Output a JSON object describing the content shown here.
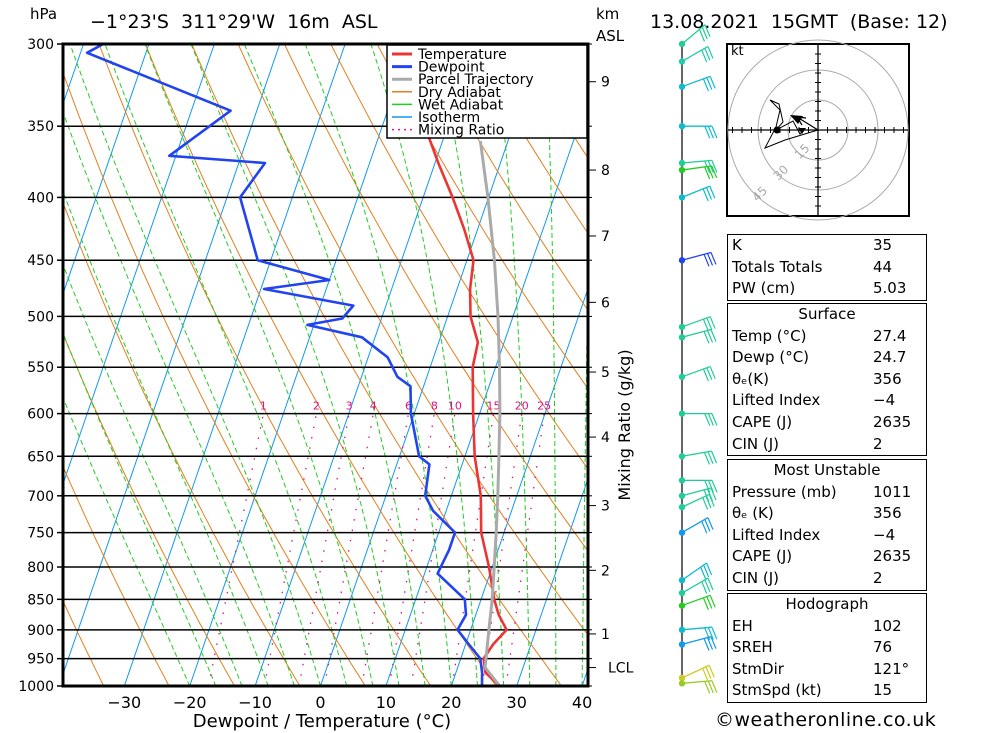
{
  "header": {
    "location": "−1°23'S  311°29'W  16m  ASL",
    "datetime": "13.08.2021  15GMT  (Base: 12)",
    "left_unit": "hPa",
    "right_unit_line1": "km",
    "right_unit_line2": "ASL"
  },
  "chart_data": {
    "type": "line",
    "title": "Skew-T log-P diagram",
    "xlabel": "Dewpoint / Temperature (°C)",
    "ylabel": "hPa",
    "y2label": "Mixing Ratio (g/kg)",
    "xlim": [
      -40,
      40
    ],
    "ylim": [
      1000,
      300
    ],
    "x_ticks": [
      -30,
      -20,
      -10,
      0,
      10,
      20,
      30,
      40
    ],
    "x_tick_labels": [
      "−30",
      "−20",
      "−10",
      "0",
      "10",
      "20",
      "30",
      "40"
    ],
    "pressure_levels": [
      300,
      350,
      400,
      450,
      500,
      550,
      600,
      650,
      700,
      750,
      800,
      850,
      900,
      950,
      1000
    ],
    "height_km_ticks": [
      {
        "label": "9",
        "p": 322
      },
      {
        "label": "8",
        "p": 380
      },
      {
        "label": "7",
        "p": 430
      },
      {
        "label": "6",
        "p": 487
      },
      {
        "label": "5",
        "p": 555
      },
      {
        "label": "4",
        "p": 627
      },
      {
        "label": "3",
        "p": 713
      },
      {
        "label": "2",
        "p": 805
      },
      {
        "label": "1",
        "p": 907
      },
      {
        "label": "LCL",
        "p": 966
      }
    ],
    "mixing_ratio_labels": [
      "1",
      "2",
      "3",
      "4",
      "6",
      "8",
      "10",
      "15",
      "20",
      "25"
    ],
    "mixing_ratio_values": [
      1,
      2,
      3,
      4,
      6,
      8,
      10,
      15,
      20,
      25
    ],
    "legend": {
      "placement": "top-center",
      "entries": [
        {
          "label": "Temperature",
          "color": "#ee3333",
          "style": "solid"
        },
        {
          "label": "Dewpoint",
          "color": "#2244ee",
          "style": "solid"
        },
        {
          "label": "Parcel Trajectory",
          "color": "#aaaaaa",
          "style": "solid"
        },
        {
          "label": "Dry Adiabat",
          "color": "#e08020",
          "style": "solid"
        },
        {
          "label": "Wet Adiabat",
          "color": "#22cc22",
          "style": "solid"
        },
        {
          "label": "Isotherm",
          "color": "#1199ee",
          "style": "solid"
        },
        {
          "label": "Mixing Ratio",
          "color": "#dd1188",
          "style": "dotted"
        }
      ]
    },
    "series": [
      {
        "name": "Temperature",
        "color": "#ee3333",
        "points": [
          [
            1000,
            27.4
          ],
          [
            975,
            24.5
          ],
          [
            950,
            23.5
          ],
          [
            925,
            24.2
          ],
          [
            900,
            25.5
          ],
          [
            875,
            23.5
          ],
          [
            850,
            22.0
          ],
          [
            800,
            19.5
          ],
          [
            750,
            16.5
          ],
          [
            700,
            14.5
          ],
          [
            650,
            11.5
          ],
          [
            600,
            9.0
          ],
          [
            550,
            6.5
          ],
          [
            525,
            6.0
          ],
          [
            500,
            3.5
          ],
          [
            475,
            2.0
          ],
          [
            450,
            1.0
          ],
          [
            425,
            -2.0
          ],
          [
            400,
            -5.5
          ],
          [
            375,
            -9.5
          ],
          [
            350,
            -13.5
          ],
          [
            340,
            -14.5
          ],
          [
            325,
            -16.5
          ],
          [
            300,
            -20.0
          ]
        ]
      },
      {
        "name": "Dewpoint",
        "color": "#2244ee",
        "points": [
          [
            1000,
            24.7
          ],
          [
            975,
            24.0
          ],
          [
            950,
            23.0
          ],
          [
            925,
            20.5
          ],
          [
            900,
            18.0
          ],
          [
            875,
            18.5
          ],
          [
            850,
            17.5
          ],
          [
            810,
            12.0
          ],
          [
            775,
            12.5
          ],
          [
            750,
            12.5
          ],
          [
            720,
            8.0
          ],
          [
            700,
            6.0
          ],
          [
            660,
            5.0
          ],
          [
            650,
            3.0
          ],
          [
            600,
            -0.5
          ],
          [
            570,
            -2.0
          ],
          [
            560,
            -4.5
          ],
          [
            540,
            -7.0
          ],
          [
            520,
            -12.0
          ],
          [
            508,
            -21.0
          ],
          [
            502,
            -16.0
          ],
          [
            490,
            -15.0
          ],
          [
            475,
            -29.5
          ],
          [
            467,
            -20.0
          ],
          [
            450,
            -32.0
          ],
          [
            400,
            -38.0
          ],
          [
            375,
            -36.0
          ],
          [
            370,
            -51.0
          ],
          [
            340,
            -44.0
          ],
          [
            305,
            -69.0
          ],
          [
            300,
            -67.0
          ]
        ]
      },
      {
        "name": "Parcel Trajectory",
        "color": "#aaaaaa",
        "points": [
          [
            1000,
            27.4
          ],
          [
            966,
            24.2
          ],
          [
            900,
            22.8
          ],
          [
            850,
            21.7
          ],
          [
            800,
            20.3
          ],
          [
            750,
            18.8
          ],
          [
            700,
            17.1
          ],
          [
            650,
            15.2
          ],
          [
            600,
            13.1
          ],
          [
            550,
            10.6
          ],
          [
            500,
            7.7
          ],
          [
            450,
            4.2
          ],
          [
            400,
            -0.1
          ],
          [
            360,
            -4.2
          ]
        ]
      }
    ]
  },
  "wind_barbs_label": "Wind profile",
  "hodograph": {
    "unit_label": "kt",
    "ring_labels": [
      "15",
      "30",
      "45"
    ]
  },
  "indices": {
    "top": [
      {
        "label": "K",
        "value": "35"
      },
      {
        "label": "Totals Totals",
        "value": "44"
      },
      {
        "label": "PW (cm)",
        "value": "5.03"
      }
    ],
    "surface": {
      "title": "Surface",
      "rows": [
        {
          "label": "Temp (°C)",
          "value": "27.4"
        },
        {
          "label": "Dewp (°C)",
          "value": "24.7"
        },
        {
          "label": "θₑ(K)",
          "value": "356"
        },
        {
          "label": "Lifted Index",
          "value": "−4"
        },
        {
          "label": "CAPE (J)",
          "value": "2635"
        },
        {
          "label": "CIN (J)",
          "value": "2"
        }
      ]
    },
    "most_unstable": {
      "title": "Most Unstable",
      "rows": [
        {
          "label": "Pressure (mb)",
          "value": "1011"
        },
        {
          "label": "θₑ (K)",
          "value": "356"
        },
        {
          "label": "Lifted Index",
          "value": "−4"
        },
        {
          "label": "CAPE (J)",
          "value": "2635"
        },
        {
          "label": "CIN (J)",
          "value": "2"
        }
      ]
    },
    "hodograph": {
      "title": "Hodograph",
      "rows": [
        {
          "label": "EH",
          "value": "102"
        },
        {
          "label": "SREH",
          "value": "76"
        },
        {
          "label": "StmDir",
          "value": "121°"
        },
        {
          "label": "StmSpd (kt)",
          "value": "15"
        }
      ]
    }
  },
  "footer": {
    "credit": "©weatheronline.co.uk"
  },
  "colors": {
    "temperature": "#ee3333",
    "dewpoint": "#2244ee",
    "parcel": "#aaaaaa",
    "dry_adiabat": "#e08020",
    "wet_adiabat": "#22cc22",
    "isotherm": "#1199ee",
    "mixing_ratio": "#dd1188"
  }
}
